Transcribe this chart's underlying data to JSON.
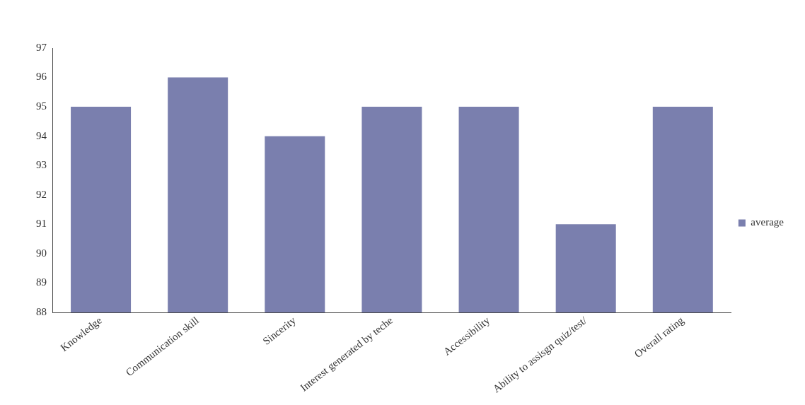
{
  "chart_data": {
    "type": "bar",
    "categories": [
      "Knowledge",
      "Communication skill",
      "Sincerity",
      "Interest generated by teche",
      "Accessibility",
      "Ability to assisgn quiz/test/",
      "Overall rating"
    ],
    "series": [
      {
        "name": "average",
        "color": "#7a7fae",
        "values": [
          95,
          96,
          94,
          95,
          95,
          91,
          95
        ]
      }
    ],
    "ylim": [
      88,
      97
    ],
    "yticks": [
      88,
      89,
      90,
      91,
      92,
      93,
      94,
      95,
      96,
      97
    ],
    "grid": false,
    "legend": "right"
  }
}
